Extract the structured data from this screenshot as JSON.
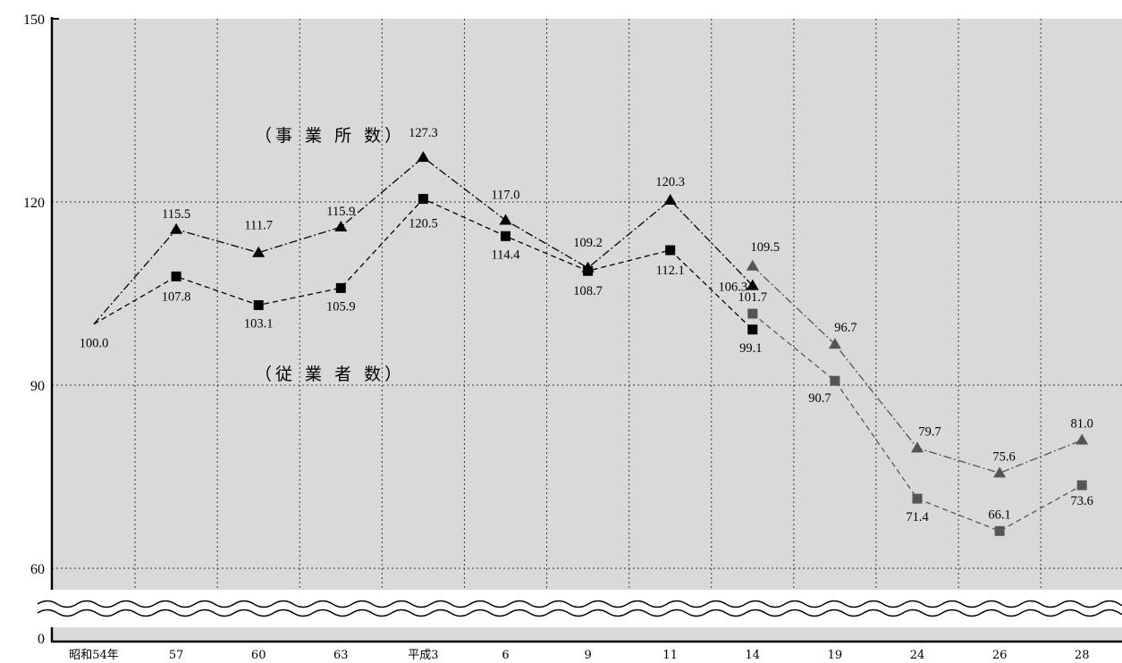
{
  "chart_data": {
    "type": "line",
    "categories": [
      "昭和54年",
      "57",
      "60",
      "63",
      "平成3",
      "6",
      "9",
      "11",
      "14",
      "19",
      "24",
      "26",
      "28"
    ],
    "y_ticks": [
      "150",
      "120",
      "90",
      "60",
      "0"
    ],
    "axis_break": "between 0 and 60",
    "grid": true,
    "series": [
      {
        "name": "（事 業 所 数）",
        "marker": "triangle",
        "line_style": "dash-dot",
        "values": [
          100.0,
          115.5,
          111.7,
          115.9,
          127.3,
          117.0,
          109.2,
          120.3,
          106.3,
          null,
          null,
          null,
          null
        ],
        "labels": [
          "",
          "115.5",
          "111.7",
          "115.9",
          "127.3",
          "117.0",
          "109.2",
          "120.3",
          "106.3",
          "",
          "",
          "",
          ""
        ],
        "color": "#000000"
      },
      {
        "marker": "triangle",
        "line_style": "dash-dot",
        "values": [
          null,
          null,
          null,
          null,
          null,
          null,
          null,
          null,
          109.5,
          96.7,
          79.7,
          75.6,
          81.0
        ],
        "labels": [
          "",
          "",
          "",
          "",
          "",
          "",
          "",
          "",
          "109.5",
          "96.7",
          "79.7",
          "75.6",
          "81.0"
        ],
        "color": "#555555"
      },
      {
        "name": "（従 業 者 数）",
        "marker": "square",
        "line_style": "dashed",
        "values": [
          100.0,
          107.8,
          103.1,
          105.9,
          120.5,
          114.4,
          108.7,
          112.1,
          99.1,
          null,
          null,
          null,
          null
        ],
        "labels": [
          "100.0",
          "107.8",
          "103.1",
          "105.9",
          "120.5",
          "114.4",
          "108.7",
          "112.1",
          "99.1",
          "",
          "",
          "",
          ""
        ],
        "color": "#000000"
      },
      {
        "marker": "square",
        "line_style": "dashed",
        "values": [
          null,
          null,
          null,
          null,
          null,
          null,
          null,
          null,
          101.7,
          90.7,
          71.4,
          66.1,
          73.6
        ],
        "labels": [
          "",
          "",
          "",
          "",
          "",
          "",
          "",
          "",
          "101.7",
          "90.7",
          "71.4",
          "66.1",
          "73.6"
        ],
        "color": "#555555"
      }
    ],
    "colors": {
      "plot_bg": "#d9d9d9",
      "series_black": "#000000",
      "series_gray": "#555555"
    }
  }
}
